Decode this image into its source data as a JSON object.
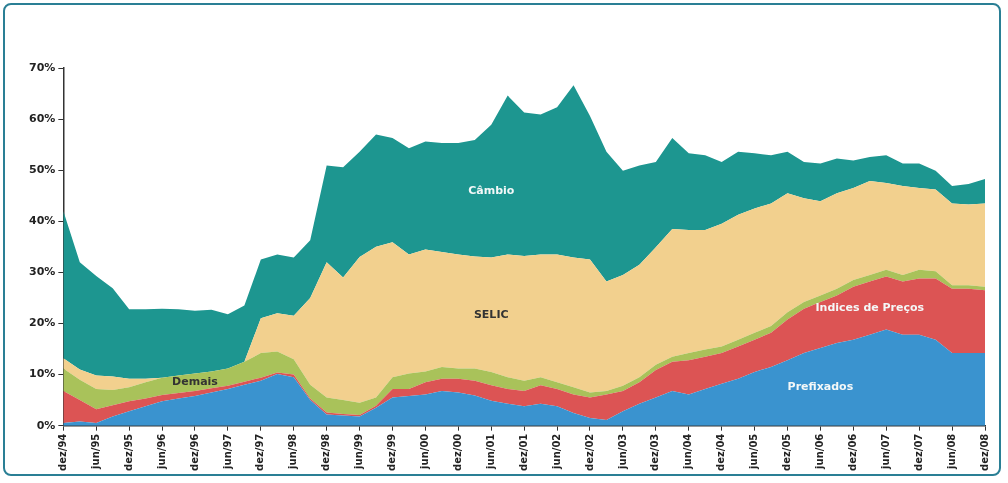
{
  "chart_data": {
    "type": "area",
    "stacked": true,
    "grid": false,
    "legend": false,
    "categories": [
      "dez/94",
      null,
      "jun/95",
      null,
      "dez/95",
      null,
      "jun/96",
      null,
      "dez/96",
      null,
      "jun/97",
      null,
      "dez/97",
      null,
      "jun/98",
      null,
      "dez/98",
      null,
      "jun/99",
      null,
      "dez/99",
      null,
      "jun/00",
      null,
      "dez/00",
      null,
      "jun/01",
      null,
      "dez/01",
      null,
      "jun/02",
      null,
      "dez/02",
      null,
      "jun/03",
      null,
      "dez/03",
      null,
      "jun/04",
      null,
      "dez/04",
      null,
      "jun/05",
      null,
      "dez/05",
      null,
      "jun/06",
      null,
      "dez/06",
      null,
      "jun/07",
      null,
      "dez/07",
      null,
      "jun/08",
      null,
      "dez/08"
    ],
    "ylim": [
      0,
      70
    ],
    "yticks": [
      {
        "value": 0,
        "label": "0%"
      },
      {
        "value": 10,
        "label": "10%"
      },
      {
        "value": 20,
        "label": "20%"
      },
      {
        "value": 30,
        "label": "30%"
      },
      {
        "value": 40,
        "label": "40%"
      },
      {
        "value": 50,
        "label": "50%"
      },
      {
        "value": 60,
        "label": "60%"
      },
      {
        "value": 70,
        "label": "70%"
      }
    ],
    "series": [
      {
        "name": "Prefixados",
        "color": "#3a93cf",
        "values": [
          0.5,
          0.8,
          0.5,
          1.8,
          2.8,
          3.8,
          4.8,
          5.3,
          5.8,
          6.5,
          7.2,
          8.0,
          8.8,
          10.1,
          9.5,
          5.0,
          2.2,
          2.0,
          1.8,
          3.5,
          5.5,
          5.8,
          6.1,
          6.8,
          6.5,
          5.9,
          4.9,
          4.3,
          3.8,
          4.3,
          3.8,
          2.5,
          1.5,
          1.1,
          2.8,
          4.3,
          5.5,
          6.8,
          6.1,
          7.2,
          8.2,
          9.2,
          10.5,
          11.5,
          12.8,
          14.2,
          15.2,
          16.2,
          16.8,
          17.8,
          18.8,
          17.8,
          17.8,
          16.8,
          14.2,
          14.2,
          14.2
        ]
      },
      {
        "name": "Indices de Preços",
        "color": "#dc5454",
        "values": [
          6.3,
          4.2,
          2.7,
          2.2,
          2.0,
          1.5,
          1.2,
          1.1,
          1.0,
          0.8,
          0.6,
          0.6,
          0.6,
          0.3,
          0.5,
          0.3,
          0.4,
          0.3,
          0.3,
          0.4,
          1.7,
          1.4,
          2.4,
          2.4,
          2.7,
          2.9,
          3.0,
          2.9,
          3.0,
          3.6,
          3.4,
          3.6,
          4.0,
          5.0,
          4.0,
          4.2,
          5.4,
          5.7,
          6.7,
          6.3,
          6.0,
          6.3,
          6.3,
          6.7,
          8.0,
          8.7,
          9.0,
          9.3,
          10.4,
          10.4,
          10.4,
          10.4,
          11.0,
          12.0,
          12.6,
          12.6,
          12.3
        ]
      },
      {
        "name": "Demais",
        "color": "#a9c25a",
        "values": [
          4.4,
          4.0,
          4.0,
          3.0,
          2.7,
          3.2,
          3.4,
          3.4,
          3.4,
          3.3,
          3.4,
          3.9,
          4.8,
          4.1,
          3.0,
          2.7,
          2.9,
          2.7,
          2.4,
          1.6,
          2.3,
          3.0,
          2.1,
          2.3,
          2.0,
          2.4,
          2.6,
          2.3,
          2.0,
          1.6,
          1.3,
          1.4,
          1.0,
          0.7,
          1.0,
          1.0,
          1.0,
          1.0,
          1.4,
          1.4,
          1.3,
          1.3,
          1.4,
          1.3,
          1.4,
          1.3,
          1.3,
          1.3,
          1.3,
          1.3,
          1.3,
          1.3,
          1.7,
          1.4,
          0.7,
          0.7,
          0.7
        ]
      },
      {
        "name": "SELIC",
        "color": "#f2d08e",
        "values": [
          2.0,
          2.0,
          2.6,
          2.6,
          1.7,
          0.7,
          0,
          0,
          0,
          0,
          0,
          0,
          6.8,
          7.5,
          8.5,
          17.0,
          26.5,
          24.0,
          28.5,
          29.5,
          26.4,
          23.3,
          23.9,
          22.5,
          22.3,
          21.9,
          22.4,
          24.0,
          24.4,
          24.0,
          25.0,
          25.4,
          26.0,
          21.4,
          21.7,
          22.0,
          23.0,
          25.0,
          24.1,
          23.4,
          24.0,
          24.5,
          24.3,
          24.0,
          23.3,
          20.3,
          18.4,
          18.7,
          18.0,
          18.4,
          17.0,
          17.4,
          16.0,
          16.0,
          16.0,
          15.8,
          16.3
        ]
      },
      {
        "name": "Câmbio",
        "color": "#1d9690",
        "values": [
          28.8,
          21.0,
          19.5,
          17.3,
          13.6,
          13.6,
          13.5,
          13.0,
          12.3,
          12.1,
          10.6,
          11.0,
          11.5,
          11.5,
          11.4,
          11.3,
          18.9,
          21.6,
          20.6,
          22.0,
          20.4,
          20.8,
          21.1,
          21.3,
          21.8,
          22.8,
          26.0,
          31.1,
          28.1,
          27.4,
          28.8,
          33.7,
          28.1,
          25.4,
          20.4,
          19.4,
          16.7,
          17.8,
          15.0,
          14.6,
          12.1,
          12.3,
          10.8,
          9.4,
          8.1,
          7.1,
          7.4,
          6.8,
          5.4,
          4.7,
          5.4,
          4.4,
          4.8,
          3.7,
          3.4,
          4.0,
          4.8
        ]
      }
    ]
  }
}
